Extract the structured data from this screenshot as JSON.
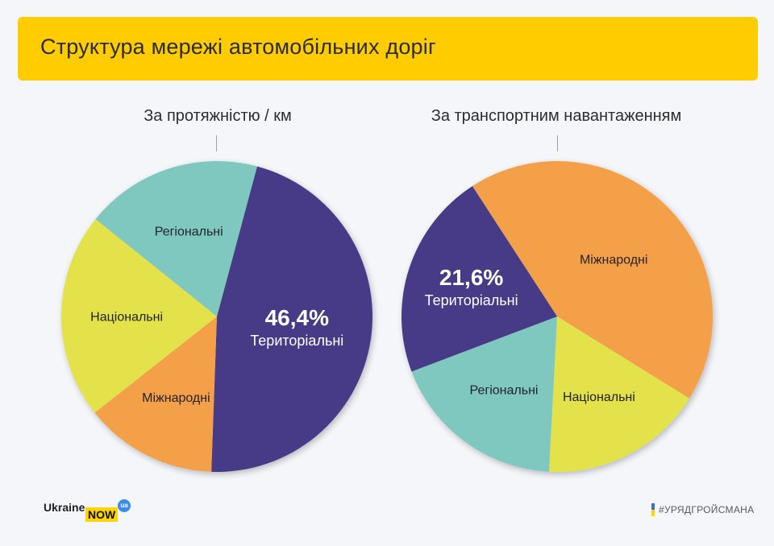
{
  "header": {
    "title": "Структура мережі автомобільних доріг"
  },
  "chart_data": [
    {
      "type": "pie",
      "title": "За протяжністю / км",
      "slices": [
        {
          "label": "Територіальні",
          "value": 46.4,
          "value_label": "46,4%",
          "color": "#473a87"
        },
        {
          "label": "Міжнародні",
          "value": 13.8,
          "value_label": "",
          "color": "#f4a04a"
        },
        {
          "label": "Національні",
          "value": 21.4,
          "value_label": "",
          "color": "#e4e24c"
        },
        {
          "label": "Регіональні",
          "value": 18.4,
          "value_label": "",
          "color": "#7ec8c0"
        }
      ]
    },
    {
      "type": "pie",
      "title": "За транспортним навантаженням",
      "slices": [
        {
          "label": "Міжнародні",
          "value": 43.0,
          "value_label": "",
          "color": "#f4a04a"
        },
        {
          "label": "Національні",
          "value": 17.0,
          "value_label": "",
          "color": "#e4e24c"
        },
        {
          "label": "Регіональні",
          "value": 18.4,
          "value_label": "",
          "color": "#7ec8c0"
        },
        {
          "label": "Територіальні",
          "value": 21.6,
          "value_label": "21,6%",
          "color": "#473a87"
        }
      ]
    }
  ],
  "footer": {
    "logo_ukraine": "Ukraine",
    "logo_now": "NOW",
    "logo_ua": "ua",
    "hashtag": "#УРЯДГРОЙСМАНА"
  }
}
